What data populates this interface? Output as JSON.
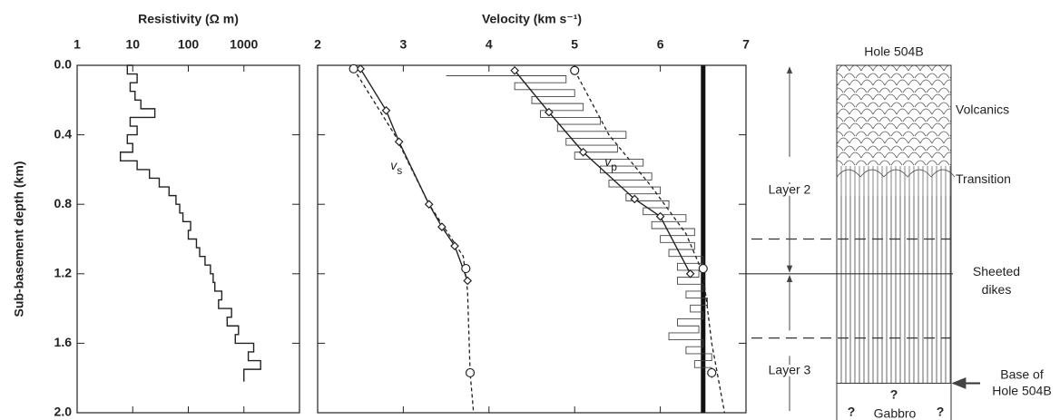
{
  "chart_data": [
    {
      "type": "line",
      "title": "Resistivity (Ω m)",
      "ylabel": "Sub-basement depth (km)",
      "xscale": "log",
      "xlim": [
        1,
        10000
      ],
      "xticks": [
        1,
        10,
        100,
        1000
      ],
      "ylim": [
        0,
        2
      ],
      "yticks": [
        {
          "value": 0,
          "label": "0.0"
        },
        0.4,
        0.8,
        1.2,
        1.6,
        {
          "value": 2,
          "label": "2.0"
        }
      ],
      "series": [
        {
          "color": "#222",
          "step": true,
          "depth": [
            0,
            0.05,
            0.1,
            0.15,
            0.2,
            0.25,
            0.3,
            0.35,
            0.4,
            0.45,
            0.5,
            0.55,
            0.6,
            0.65,
            0.7,
            0.75,
            0.8,
            0.85,
            0.9,
            0.95,
            1.0,
            1.05,
            1.1,
            1.15,
            1.2,
            1.25,
            1.3,
            1.35,
            1.4,
            1.45,
            1.5,
            1.55,
            1.6,
            1.65,
            1.7,
            1.75,
            1.8
          ],
          "values": [
            10,
            8,
            12,
            9,
            11,
            14,
            25,
            9,
            12,
            8,
            10,
            6,
            12,
            20,
            30,
            45,
            60,
            70,
            80,
            110,
            100,
            140,
            160,
            200,
            250,
            280,
            300,
            400,
            350,
            600,
            500,
            800,
            700,
            1500,
            1200,
            2000,
            1000
          ]
        }
      ]
    },
    {
      "type": "line",
      "title": "Velocity (km s⁻¹)",
      "xlim": [
        2,
        7
      ],
      "xticks": [
        2,
        3,
        4,
        5,
        6,
        7
      ],
      "ylim": [
        0,
        2
      ],
      "yticks": [
        0,
        0.4,
        0.8,
        1.2,
        1.6,
        2
      ],
      "vline": 6.5,
      "series": [
        {
          "color": "#444",
          "style": "thin",
          "step": true,
          "depth": [
            0.06,
            0.1,
            0.14,
            0.18,
            0.22,
            0.26,
            0.3,
            0.34,
            0.38,
            0.42,
            0.46,
            0.5,
            0.54,
            0.58,
            0.62,
            0.66,
            0.7,
            0.74,
            0.78,
            0.82,
            0.86,
            0.9,
            0.94,
            0.98,
            1.02,
            1.06,
            1.1,
            1.14,
            1.18,
            1.22,
            1.26,
            1.3,
            1.34,
            1.38,
            1.42,
            1.46,
            1.5,
            1.54,
            1.58,
            1.62,
            1.66,
            1.7,
            1.74,
            1.78
          ],
          "values": [
            3.5,
            4.9,
            4.3,
            5.0,
            4.5,
            5.1,
            4.6,
            5.3,
            4.8,
            5.6,
            4.9,
            5.5,
            5.0,
            5.8,
            5.3,
            5.9,
            5.4,
            6.0,
            5.6,
            6.1,
            5.8,
            6.3,
            5.9,
            6.4,
            6.0,
            6.4,
            6.1,
            6.5,
            6.2,
            6.45,
            6.2,
            6.5,
            6.3,
            6.55,
            6.35,
            6.5,
            6.2,
            6.45,
            6.1,
            6.5,
            6.3,
            6.6,
            6.4,
            6.6
          ]
        },
        {
          "color": "#222",
          "style": "dashed",
          "depth": [
            0.02,
            0.4,
            0.8,
            1.1,
            1.3,
            1.77,
            2.0
          ],
          "values": [
            2.42,
            2.9,
            3.3,
            3.7,
            3.75,
            3.78,
            3.82
          ]
        },
        {
          "color": "#222",
          "style": "dashed",
          "depth": [
            0.03,
            0.4,
            0.7,
            0.97,
            1.2,
            1.6,
            2.0
          ],
          "values": [
            5.0,
            5.4,
            5.9,
            6.3,
            6.5,
            6.6,
            6.75
          ]
        },
        {
          "color": "#222",
          "style": "solid",
          "marker": "diamond",
          "depth": [
            0.02,
            0.26,
            0.44,
            0.8,
            0.93,
            1.04,
            1.24
          ],
          "values": [
            2.5,
            2.8,
            2.95,
            3.3,
            3.45,
            3.6,
            3.75
          ]
        },
        {
          "color": "#222",
          "style": "solid",
          "marker": "diamond",
          "depth": [
            0.03,
            0.27,
            0.5,
            0.77,
            0.87,
            1.2
          ],
          "values": [
            4.3,
            4.7,
            5.1,
            5.7,
            6.0,
            6.35
          ]
        },
        {
          "color": "#222",
          "style": "none",
          "marker": "circle",
          "depth": [
            0.02,
            1.17,
            1.77,
            0.03,
            1.17,
            1.77
          ],
          "values": [
            2.42,
            3.73,
            3.78,
            5.0,
            6.5,
            6.6
          ]
        }
      ],
      "annotations": [
        {
          "text": "v",
          "sub": "s",
          "value": 2.85,
          "depth": 0.58
        },
        {
          "text": "v",
          "sub": "p",
          "value": 5.35,
          "depth": 0.56
        }
      ]
    }
  ],
  "column": {
    "title": "Hole 504B",
    "zones": [
      {
        "label": "Volcanics",
        "top": 0,
        "bottom": 0.58
      },
      {
        "label": "Transition",
        "top": 0.58,
        "bottom": 0.75
      },
      {
        "label": [
          "Sheeted",
          "dikes"
        ],
        "top": 0.75,
        "bottom": 1.83
      }
    ],
    "boundaries": [
      {
        "depth": 1.0,
        "style": "dashed"
      },
      {
        "depth": 1.2,
        "style": "solid"
      },
      {
        "depth": 1.57,
        "style": "dashed"
      }
    ],
    "layers": [
      {
        "label": "Layer 2",
        "top": 0,
        "bottom": 1.2
      },
      {
        "label": "Layer 3",
        "top": 1.2,
        "bottom": 2.0
      }
    ],
    "base": {
      "label": [
        "Base of",
        "Hole 504B"
      ],
      "depth": 1.83
    },
    "below": "Gabbro",
    "unknown": "?"
  }
}
